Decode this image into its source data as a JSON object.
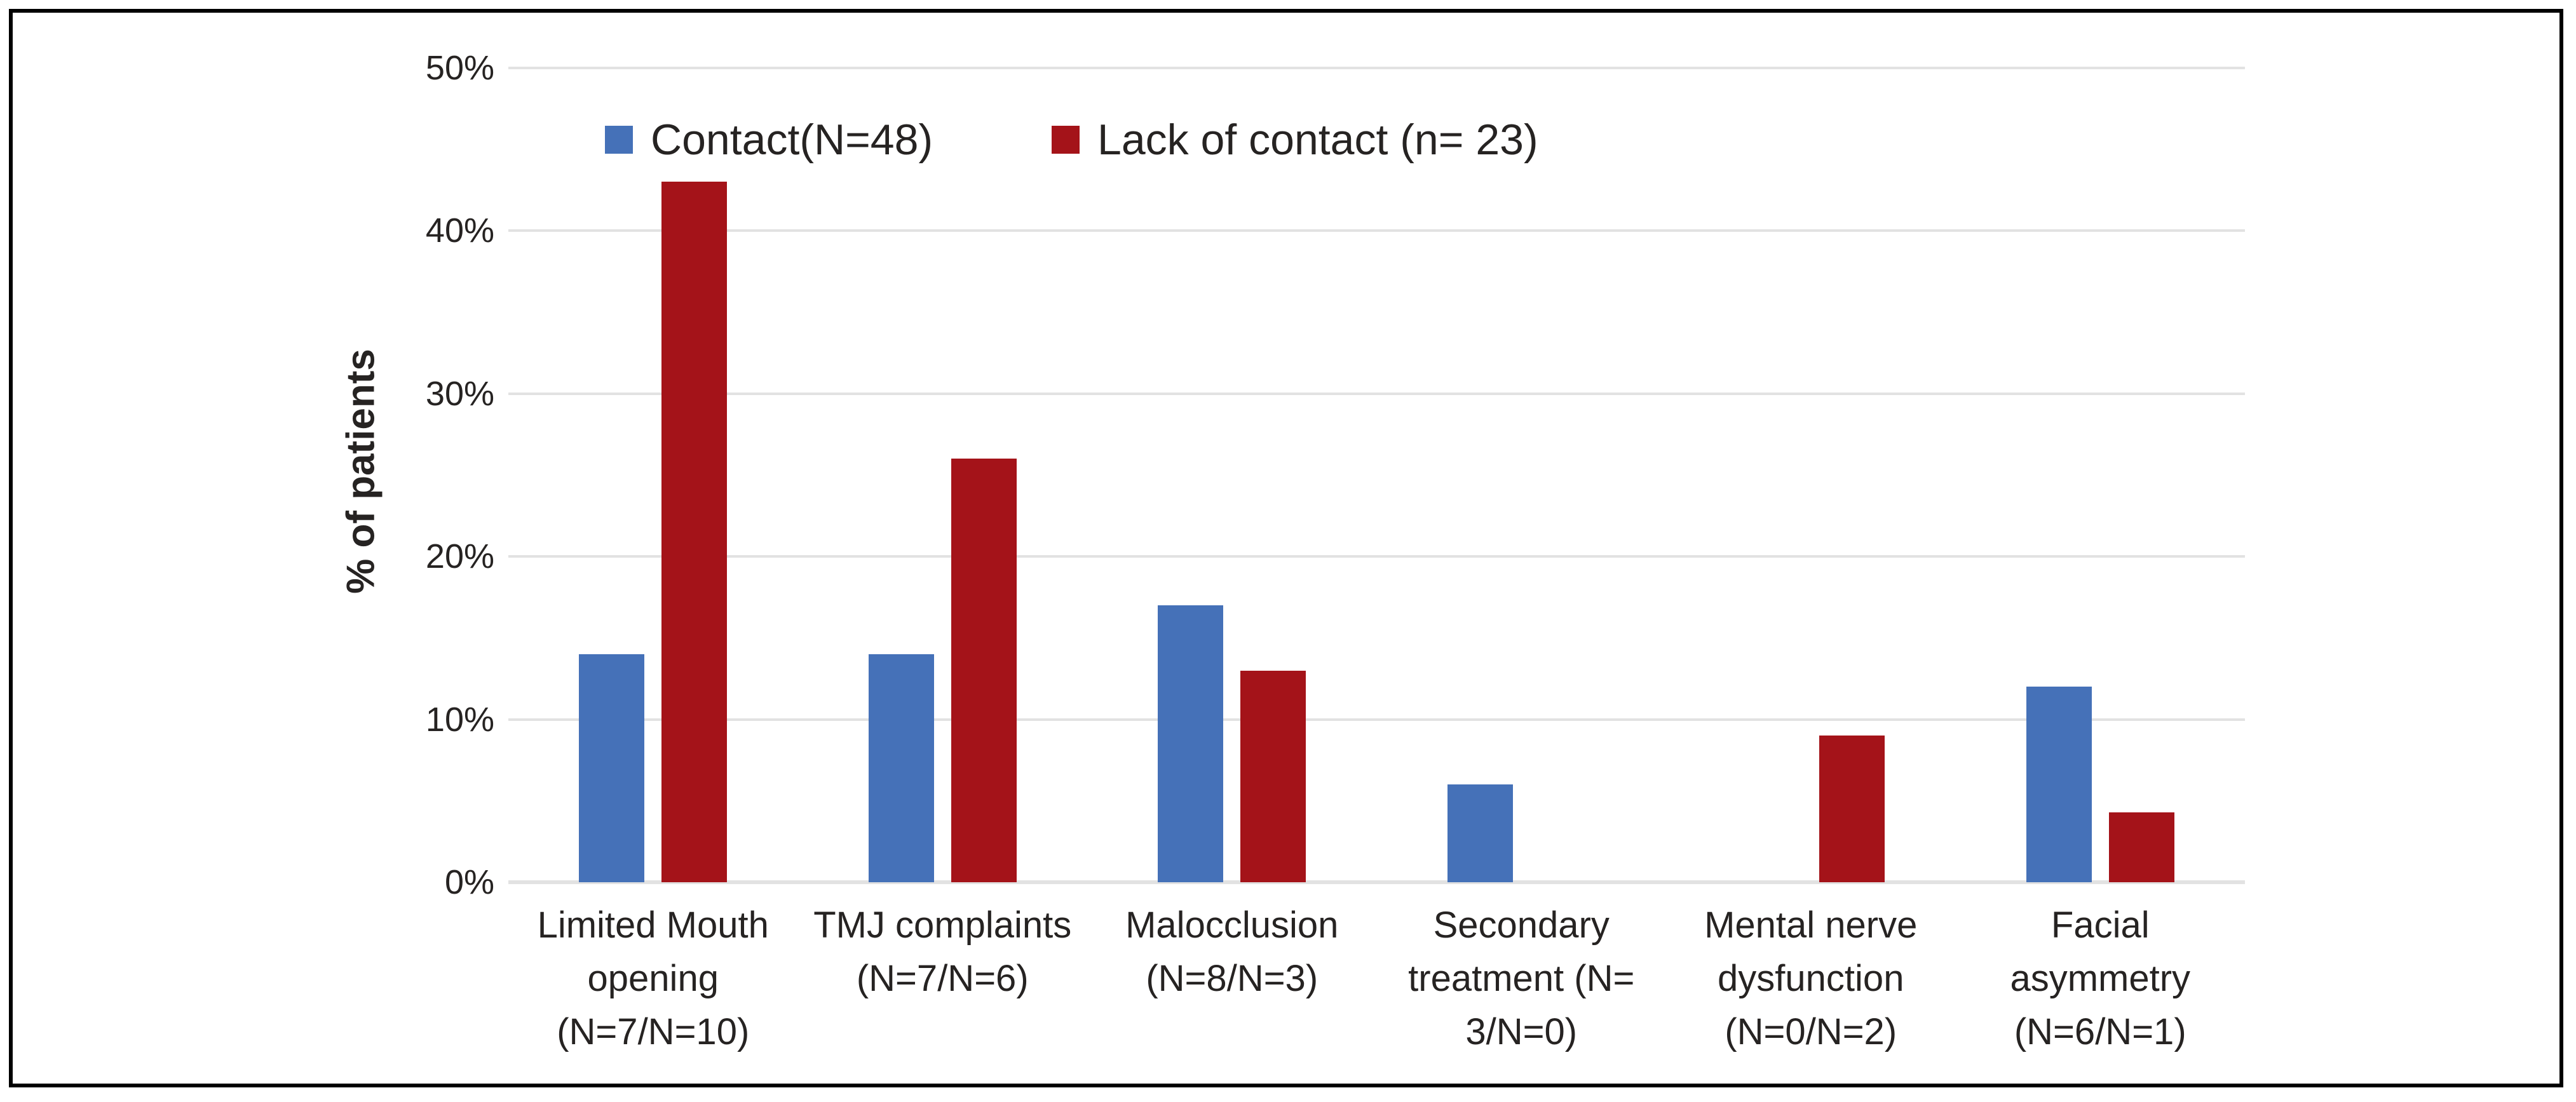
{
  "figure": {
    "background_color": "#FFFFFF",
    "border_color": "#000000"
  },
  "legend": {
    "items": [
      {
        "label": "Contact(N=48)",
        "color": "#4571B8"
      },
      {
        "label": "Lack of contact (n= 23)",
        "color": "#A41319"
      }
    ]
  },
  "chart_data": {
    "type": "bar",
    "title": "",
    "xlabel": "",
    "ylabel": "% of patients",
    "ylim": [
      0,
      50
    ],
    "yticks": [
      {
        "value": 0,
        "label": "0%"
      },
      {
        "value": 10,
        "label": "10%"
      },
      {
        "value": 20,
        "label": "20%"
      },
      {
        "value": 30,
        "label": "30%"
      },
      {
        "value": 40,
        "label": "40%"
      },
      {
        "value": 50,
        "label": "50%"
      }
    ],
    "grid": "horizontal",
    "gridline_color": "#E2E2E2",
    "text_color": "#262322",
    "legend_position": "top-inside",
    "categories": [
      {
        "lines": [
          "Limited Mouth",
          "opening",
          "(N=7/N=10)"
        ]
      },
      {
        "lines": [
          "TMJ complaints",
          "(N=7/N=6)"
        ]
      },
      {
        "lines": [
          "Malocclusion",
          "(N=8/N=3)"
        ]
      },
      {
        "lines": [
          "Secondary",
          "treatment (N=",
          "3/N=0)"
        ]
      },
      {
        "lines": [
          "Mental nerve",
          "dysfunction",
          "(N=0/N=2)"
        ]
      },
      {
        "lines": [
          "Facial",
          "asymmetry",
          "(N=6/N=1)"
        ]
      }
    ],
    "series": [
      {
        "name": "Contact(N=48)",
        "color": "#4571B8",
        "values": [
          14,
          14,
          17,
          6,
          0,
          12
        ]
      },
      {
        "name": "Lack of contact (n= 23)",
        "color": "#A41319",
        "values": [
          43,
          26,
          13,
          0,
          9,
          4.3
        ]
      }
    ]
  }
}
